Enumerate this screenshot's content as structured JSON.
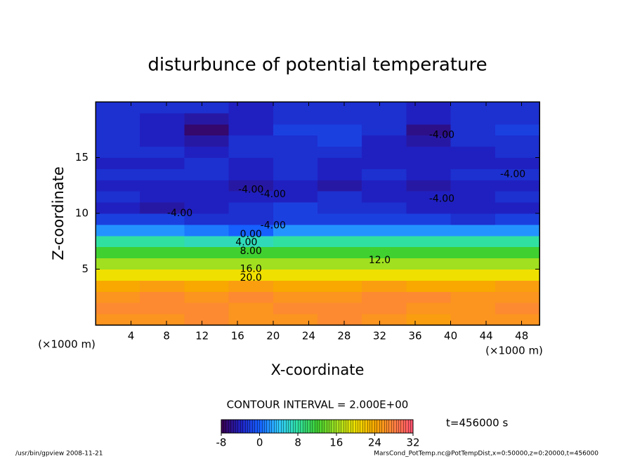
{
  "chart_data": {
    "type": "contour",
    "title": "disturbunce of potential temperature",
    "xlabel": "X-coordinate",
    "ylabel": "Z-coordinate",
    "x_unit": "(×1000 m)",
    "x": [
      2.5,
      7.5,
      12.5,
      17.5,
      22.5,
      27.5,
      32.5,
      37.5,
      42.5,
      47.5
    ],
    "z": [
      0.5,
      1.5,
      2.5,
      3.5,
      4.5,
      5.5,
      6.5,
      7.5,
      8.5,
      9.5,
      10.5,
      11.5,
      12.5,
      13.5,
      14.5,
      15.5,
      16.5,
      17.5,
      18.5,
      19.5
    ],
    "values": [
      [
        26,
        26,
        27,
        26,
        26,
        27,
        26,
        25,
        26,
        26
      ],
      [
        27,
        27,
        27,
        26,
        27,
        27,
        27,
        26,
        26,
        27
      ],
      [
        26,
        27,
        26,
        27,
        26,
        26,
        27,
        27,
        26,
        26
      ],
      [
        24,
        25,
        24,
        25,
        24,
        24,
        25,
        24,
        24,
        25
      ],
      [
        20,
        20,
        20,
        20,
        20,
        20,
        20,
        20,
        20,
        20
      ],
      [
        16,
        16,
        16,
        16,
        16,
        16,
        16,
        16,
        16,
        16
      ],
      [
        12,
        12,
        12,
        12,
        12,
        12,
        12,
        12,
        12,
        12
      ],
      [
        8,
        8,
        7,
        7,
        8,
        8,
        8,
        8,
        8,
        8
      ],
      [
        2,
        2,
        1,
        0,
        2,
        2,
        2,
        2,
        2,
        2
      ],
      [
        -2,
        -2,
        -3,
        -3,
        -2,
        -2,
        -2,
        -2,
        -3,
        -2
      ],
      [
        -4,
        -5,
        -4,
        -3,
        -2,
        -3,
        -3,
        -4,
        -4,
        -4
      ],
      [
        -3,
        -4,
        -4,
        -4,
        -4,
        -3,
        -4,
        -4,
        -4,
        -3
      ],
      [
        -4,
        -4,
        -4,
        -5,
        -4,
        -5,
        -4,
        -5,
        -4,
        -4
      ],
      [
        -3,
        -3,
        -3,
        -4,
        -3,
        -4,
        -3,
        -4,
        -3,
        -3
      ],
      [
        -4,
        -4,
        -3,
        -4,
        -3,
        -4,
        -4,
        -4,
        -4,
        -4
      ],
      [
        -3,
        -3,
        -4,
        -3,
        -3,
        -3,
        -4,
        -4,
        -4,
        -3
      ],
      [
        -3,
        -4,
        -5,
        -3,
        -3,
        -2,
        -4,
        -5,
        -3,
        -3
      ],
      [
        -3,
        -4,
        -7,
        -4,
        -2,
        -2,
        -3,
        -6,
        -3,
        -2
      ],
      [
        -3,
        -4,
        -5,
        -4,
        -3,
        -3,
        -3,
        -4,
        -3,
        -3
      ],
      [
        -3,
        -3,
        -3,
        -4,
        -3,
        -3,
        -3,
        -4,
        -3,
        -3
      ]
    ],
    "xlim": [
      0,
      50
    ],
    "ylim": [
      0,
      20
    ],
    "xticks": [
      4,
      8,
      12,
      16,
      20,
      24,
      28,
      32,
      36,
      40,
      44,
      48
    ],
    "yticks": [
      5,
      10,
      15
    ],
    "clim": [
      -8,
      32
    ],
    "colormap": [
      "#3a0050",
      "#2020c0",
      "#1560ff",
      "#30c8ff",
      "#30e0a0",
      "#40d030",
      "#a0e020",
      "#f0e000",
      "#f8a800",
      "#ff8040",
      "#ff5070"
    ],
    "colorbar_ticks": [
      -8,
      0,
      8,
      16,
      24,
      32
    ],
    "contour_labels": [
      {
        "x": 39,
        "z": 17,
        "label": "-4.00"
      },
      {
        "x": 47,
        "z": 13.5,
        "label": "-4.00"
      },
      {
        "x": 39,
        "z": 11.3,
        "label": "-4.00"
      },
      {
        "x": 17.5,
        "z": 12.1,
        "label": "-4.00"
      },
      {
        "x": 20,
        "z": 11.7,
        "label": "-4.00"
      },
      {
        "x": 9.5,
        "z": 10,
        "label": "-4.00"
      },
      {
        "x": 20,
        "z": 8.9,
        "label": "-4.00"
      },
      {
        "x": 17.5,
        "z": 8.1,
        "label": "0.00"
      },
      {
        "x": 17,
        "z": 7.4,
        "label": "4.00"
      },
      {
        "x": 17.5,
        "z": 6.6,
        "label": "8.00"
      },
      {
        "x": 32,
        "z": 5.8,
        "label": "12.0"
      },
      {
        "x": 17.5,
        "z": 5,
        "label": "16.0"
      },
      {
        "x": 17.5,
        "z": 4.2,
        "label": "20.0"
      }
    ],
    "contour_interval": "CONTOUR INTERVAL = 2.000E+00",
    "time": "t=456000 s",
    "footer_left": "/usr/bin/gpview   2008-11-21",
    "footer_right": "MarsCond_PotTemp.nc@PotTempDist,x=0:50000,z=0:20000,t=456000"
  }
}
